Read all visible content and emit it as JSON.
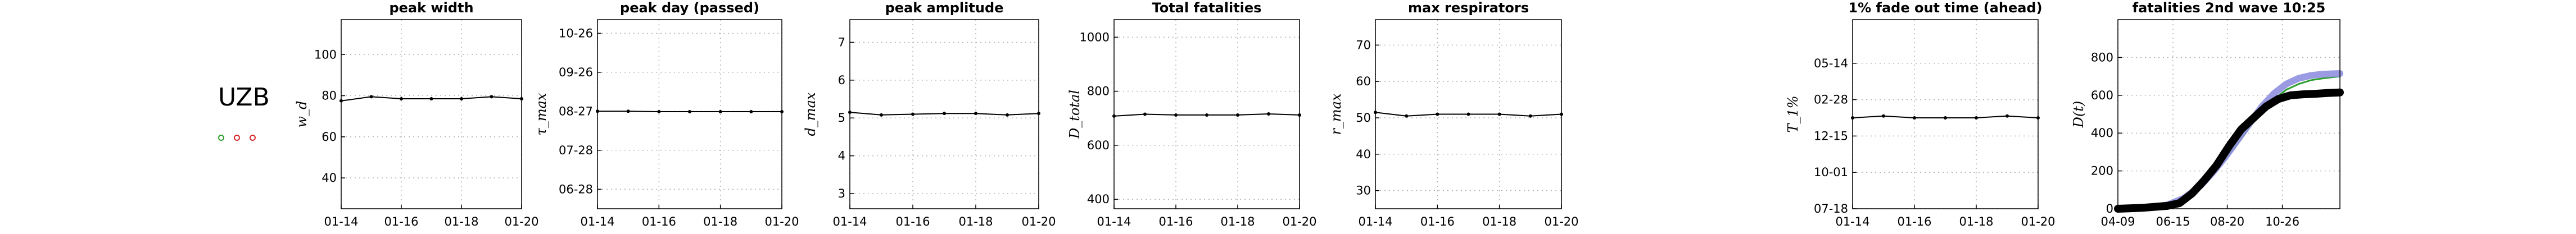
{
  "country": {
    "code": "UZB",
    "marker_colors": [
      "#2ca02c",
      "#d62728",
      "#d62728"
    ]
  },
  "chart_data": [
    {
      "type": "line",
      "title": "peak width",
      "ylabel": "w_d",
      "x": [
        "01-14",
        "01-15",
        "01-16",
        "01-17",
        "01-18",
        "01-19",
        "01-20"
      ],
      "x_ticks": [
        "01-14",
        "01-16",
        "01-18",
        "01-20"
      ],
      "ylim": [
        25,
        117
      ],
      "y_ticks": [
        40,
        60,
        80,
        100
      ],
      "y_tick_labels": [
        "40",
        "60",
        "80",
        "100"
      ],
      "series": [
        {
          "values": [
            77.5,
            79.5,
            78.5,
            78.5,
            78.5,
            79.5,
            78.5
          ],
          "color": "#000000"
        }
      ],
      "grid": true
    },
    {
      "type": "line",
      "title": "peak day (passed)",
      "ylabel": "τ_max",
      "x": [
        "01-14",
        "01-15",
        "01-16",
        "01-17",
        "01-18",
        "01-19",
        "01-20"
      ],
      "x_ticks": [
        "01-14",
        "01-16",
        "01-18",
        "01-20"
      ],
      "ylim": [
        0,
        9.7
      ],
      "y_ticks": [
        1,
        3,
        5,
        7,
        9
      ],
      "y_tick_labels": [
        "06-28",
        "07-28",
        "08-27",
        "09-26",
        "10-26"
      ],
      "series": [
        {
          "values": [
            5.0,
            5.0,
            4.98,
            4.98,
            4.98,
            4.98,
            4.98
          ],
          "color": "#000000"
        }
      ],
      "grid": true
    },
    {
      "type": "line",
      "title": "peak amplitude",
      "ylabel": "d_max",
      "x": [
        "01-14",
        "01-15",
        "01-16",
        "01-17",
        "01-18",
        "01-19",
        "01-20"
      ],
      "x_ticks": [
        "01-14",
        "01-16",
        "01-18",
        "01-20"
      ],
      "ylim": [
        2.6,
        7.6
      ],
      "y_ticks": [
        3,
        4,
        5,
        6,
        7
      ],
      "y_tick_labels": [
        "3",
        "4",
        "5",
        "6",
        "7"
      ],
      "series": [
        {
          "values": [
            5.15,
            5.08,
            5.1,
            5.12,
            5.12,
            5.08,
            5.12
          ],
          "color": "#000000"
        }
      ],
      "grid": true
    },
    {
      "type": "line",
      "title": "Total fatalities",
      "ylabel": "D_total",
      "x": [
        "01-14",
        "01-15",
        "01-16",
        "01-17",
        "01-18",
        "01-19",
        "01-20"
      ],
      "x_ticks": [
        "01-14",
        "01-16",
        "01-18",
        "01-20"
      ],
      "ylim": [
        365,
        1065
      ],
      "y_ticks": [
        400,
        600,
        800,
        1000
      ],
      "y_tick_labels": [
        "400",
        "600",
        "800",
        "1000"
      ],
      "series": [
        {
          "values": [
            708,
            715,
            712,
            712,
            712,
            716,
            712
          ],
          "color": "#000000"
        }
      ],
      "grid": true
    },
    {
      "type": "line",
      "title": "max respirators",
      "ylabel": "r_max",
      "x": [
        "01-14",
        "01-15",
        "01-16",
        "01-17",
        "01-18",
        "01-19",
        "01-20"
      ],
      "x_ticks": [
        "01-14",
        "01-16",
        "01-18",
        "01-20"
      ],
      "ylim": [
        25,
        77
      ],
      "y_ticks": [
        30,
        40,
        50,
        60,
        70
      ],
      "y_tick_labels": [
        "30",
        "40",
        "50",
        "60",
        "70"
      ],
      "series": [
        {
          "values": [
            51.5,
            50.5,
            51.0,
            51.0,
            51.0,
            50.5,
            51.0
          ],
          "color": "#000000"
        }
      ],
      "grid": true
    },
    {
      "type": "line",
      "title": "1% fade out time (ahead)",
      "ylabel": "T_1%",
      "x": [
        "01-14",
        "01-15",
        "01-16",
        "01-17",
        "01-18",
        "01-19",
        "01-20"
      ],
      "x_ticks": [
        "01-14",
        "01-16",
        "01-18",
        "01-20"
      ],
      "ylim": [
        0,
        5.2
      ],
      "y_ticks": [
        0,
        1,
        2,
        3,
        4
      ],
      "y_tick_labels": [
        "07-18",
        "10-01",
        "12-15",
        "02-28",
        "05-14"
      ],
      "series": [
        {
          "values": [
            2.5,
            2.55,
            2.5,
            2.5,
            2.5,
            2.55,
            2.5
          ],
          "color": "#000000"
        }
      ],
      "grid": true
    },
    {
      "type": "line",
      "title": "fatalities 2nd wave 10:25",
      "ylabel": "D(t)",
      "x_ticks": [
        "04-09",
        "06-15",
        "08-20",
        "10-26"
      ],
      "x_tick_positions": [
        0,
        67,
        133,
        200
      ],
      "xlim": [
        0,
        270
      ],
      "ylim": [
        0,
        1000
      ],
      "y_ticks": [
        0,
        200,
        400,
        600,
        800
      ],
      "y_tick_labels": [
        "0",
        "200",
        "400",
        "600",
        "800"
      ],
      "series": [
        {
          "x": [
            0,
            30,
            60,
            80,
            100,
            115,
            130,
            145,
            160,
            175,
            190,
            205,
            220,
            235,
            250,
            270
          ],
          "values": [
            0,
            5,
            20,
            50,
            110,
            180,
            260,
            340,
            430,
            510,
            580,
            630,
            660,
            680,
            690,
            700
          ],
          "color": "#2ca02c"
        },
        {
          "x": [
            0,
            30,
            60,
            80,
            100,
            115,
            130,
            145,
            160,
            175,
            190,
            205,
            220,
            235,
            250,
            270
          ],
          "values": [
            0,
            5,
            20,
            55,
            120,
            190,
            270,
            360,
            450,
            540,
            610,
            660,
            690,
            705,
            712,
            715
          ],
          "color": "#9090e0"
        },
        {
          "x": [
            0,
            30,
            60,
            75,
            90,
            105,
            120,
            135,
            150,
            165,
            180,
            195,
            210,
            225,
            240,
            255,
            270
          ],
          "values": [
            0,
            5,
            15,
            30,
            80,
            150,
            230,
            330,
            420,
            480,
            540,
            580,
            600,
            605,
            608,
            612,
            615
          ],
          "color": "#000000"
        }
      ],
      "grid": true
    }
  ]
}
